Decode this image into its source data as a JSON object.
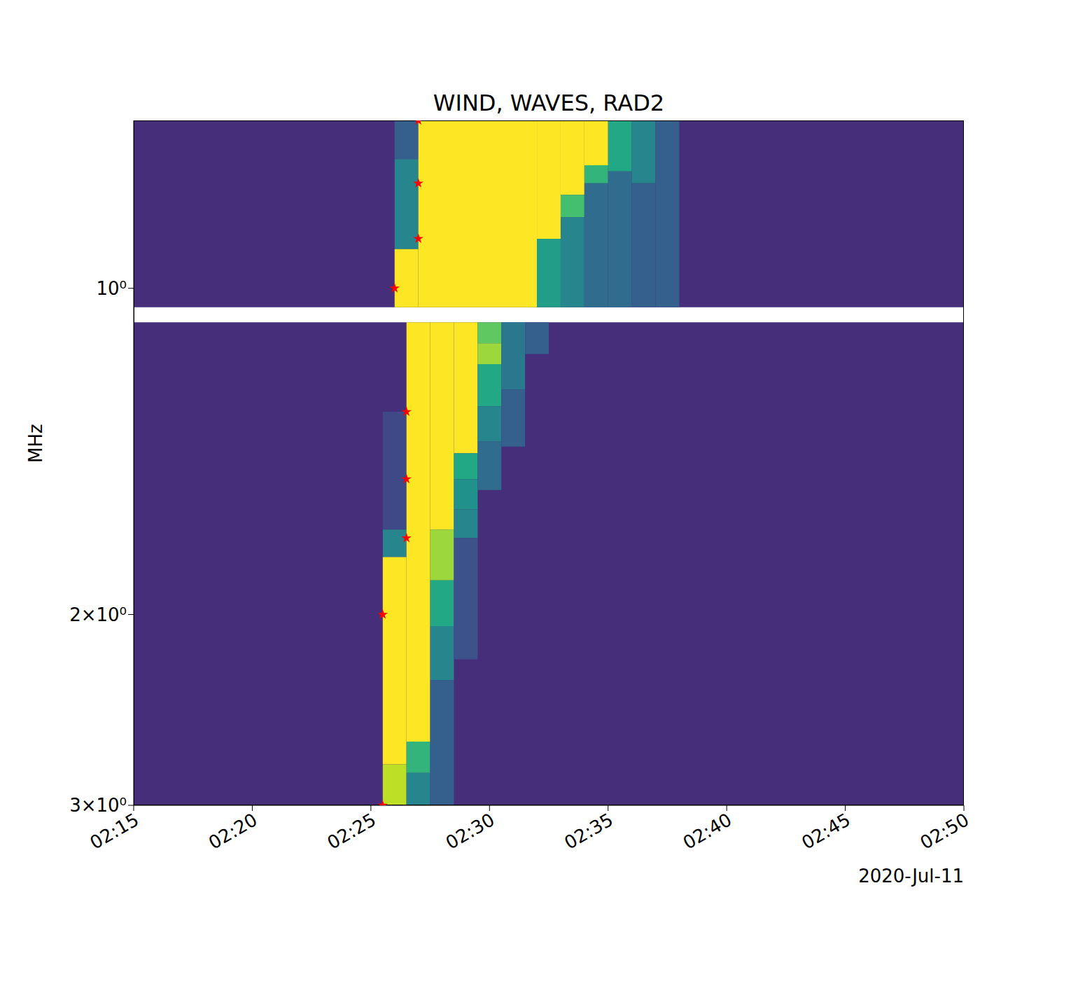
{
  "chart_data": {
    "type": "heatmap",
    "title": "WIND, WAVES, RAD2",
    "ylabel": "MHz",
    "xlabel": "2020-Jul-11",
    "log": "y",
    "grid": false,
    "xlim": [
      135,
      170
    ],
    "xticks": [
      {
        "value": 135,
        "label": "02:15"
      },
      {
        "value": 140,
        "label": "02:20"
      },
      {
        "value": 145,
        "label": "02:25"
      },
      {
        "value": 150,
        "label": "02:30"
      },
      {
        "value": 155,
        "label": "02:35"
      },
      {
        "value": 160,
        "label": "02:40"
      },
      {
        "value": 165,
        "label": "02:45"
      },
      {
        "value": 170,
        "label": "02:50"
      }
    ],
    "ylim": [
      0.7,
      3
    ],
    "yticks": [
      {
        "value": 1,
        "label": "10⁰"
      },
      {
        "value": 2,
        "label": "2×10⁰"
      },
      {
        "value": 3,
        "label": "3×10⁰"
      }
    ],
    "clim": [
      0,
      1
    ],
    "panels": [
      {
        "f": [
          0.7,
          1.041
        ],
        "background": 0.13
      },
      {
        "f": [
          1.075,
          3
        ],
        "background": 0.13
      }
    ],
    "cells": [
      {
        "t": [
          146,
          147
        ],
        "f": [
          0.7,
          0.76
        ],
        "value": 0.3
      },
      {
        "t": [
          146,
          147
        ],
        "f": [
          0.76,
          0.92
        ],
        "value": 0.45
      },
      {
        "t": [
          146,
          147
        ],
        "f": [
          0.92,
          1.041
        ],
        "value": 1
      },
      {
        "t": [
          147,
          152
        ],
        "f": [
          0.7,
          1.041
        ],
        "value": 1
      },
      {
        "t": [
          152,
          153
        ],
        "f": [
          0.7,
          0.9
        ],
        "value": 1
      },
      {
        "t": [
          152,
          153
        ],
        "f": [
          0.9,
          1.041
        ],
        "value": 0.55
      },
      {
        "t": [
          153,
          154
        ],
        "f": [
          0.7,
          0.82
        ],
        "value": 1
      },
      {
        "t": [
          153,
          154
        ],
        "f": [
          0.82,
          0.86
        ],
        "value": 0.7
      },
      {
        "t": [
          153,
          154
        ],
        "f": [
          0.86,
          1.041
        ],
        "value": 0.45
      },
      {
        "t": [
          154,
          155
        ],
        "f": [
          0.7,
          0.77
        ],
        "value": 1
      },
      {
        "t": [
          154,
          155
        ],
        "f": [
          0.77,
          0.8
        ],
        "value": 0.65
      },
      {
        "t": [
          154,
          155
        ],
        "f": [
          0.8,
          1.041
        ],
        "value": 0.35
      },
      {
        "t": [
          155,
          156
        ],
        "f": [
          0.7,
          0.78
        ],
        "value": 0.6
      },
      {
        "t": [
          155,
          156
        ],
        "f": [
          0.78,
          1.041
        ],
        "value": 0.35
      },
      {
        "t": [
          156,
          157
        ],
        "f": [
          0.7,
          0.8
        ],
        "value": 0.45
      },
      {
        "t": [
          156,
          157
        ],
        "f": [
          0.8,
          1.041
        ],
        "value": 0.3
      },
      {
        "t": [
          157,
          158
        ],
        "f": [
          0.7,
          1.041
        ],
        "value": 0.3
      },
      {
        "t": [
          145.5,
          146.5
        ],
        "f": [
          1.3,
          1.67
        ],
        "value": 0.22
      },
      {
        "t": [
          145.5,
          146.5
        ],
        "f": [
          1.67,
          1.77
        ],
        "value": 0.45
      },
      {
        "t": [
          145.5,
          146.5
        ],
        "f": [
          1.77,
          2.75
        ],
        "value": 1
      },
      {
        "t": [
          145.5,
          146.5
        ],
        "f": [
          2.75,
          3
        ],
        "value": 0.9
      },
      {
        "t": [
          146.5,
          147.5
        ],
        "f": [
          1.075,
          2.62
        ],
        "value": 1
      },
      {
        "t": [
          146.5,
          147.5
        ],
        "f": [
          2.62,
          2.8
        ],
        "value": 0.65
      },
      {
        "t": [
          146.5,
          147.5
        ],
        "f": [
          2.8,
          3
        ],
        "value": 0.45
      },
      {
        "t": [
          147.5,
          148.5
        ],
        "f": [
          1.075,
          1.67
        ],
        "value": 1
      },
      {
        "t": [
          147.5,
          148.5
        ],
        "f": [
          1.67,
          1.86
        ],
        "value": 0.85
      },
      {
        "t": [
          147.5,
          148.5
        ],
        "f": [
          1.86,
          2.05
        ],
        "value": 0.6
      },
      {
        "t": [
          147.5,
          148.5
        ],
        "f": [
          2.05,
          2.3
        ],
        "value": 0.45
      },
      {
        "t": [
          147.5,
          148.5
        ],
        "f": [
          2.3,
          3
        ],
        "value": 0.3
      },
      {
        "t": [
          148.5,
          149.5
        ],
        "f": [
          1.075,
          1.42
        ],
        "value": 1
      },
      {
        "t": [
          148.5,
          149.5
        ],
        "f": [
          1.42,
          1.5
        ],
        "value": 0.6
      },
      {
        "t": [
          148.5,
          149.5
        ],
        "f": [
          1.5,
          1.6
        ],
        "value": 0.5
      },
      {
        "t": [
          148.5,
          149.5
        ],
        "f": [
          1.6,
          1.7
        ],
        "value": 0.45
      },
      {
        "t": [
          148.5,
          149.5
        ],
        "f": [
          1.7,
          2.2
        ],
        "value": 0.25
      },
      {
        "t": [
          149.5,
          150.5
        ],
        "f": [
          1.075,
          1.124
        ],
        "value": 0.75
      },
      {
        "t": [
          149.5,
          150.5
        ],
        "f": [
          1.124,
          1.175
        ],
        "value": 0.85
      },
      {
        "t": [
          149.5,
          150.5
        ],
        "f": [
          1.175,
          1.285
        ],
        "value": 0.6
      },
      {
        "t": [
          149.5,
          150.5
        ],
        "f": [
          1.285,
          1.385
        ],
        "value": 0.45
      },
      {
        "t": [
          149.5,
          150.5
        ],
        "f": [
          1.385,
          1.535
        ],
        "value": 0.35
      },
      {
        "t": [
          150.5,
          151.5
        ],
        "f": [
          1.075,
          1.24
        ],
        "value": 0.4
      },
      {
        "t": [
          150.5,
          151.5
        ],
        "f": [
          1.24,
          1.4
        ],
        "value": 0.3
      },
      {
        "t": [
          151.5,
          152.5
        ],
        "f": [
          1.075,
          1.15
        ],
        "value": 0.3
      }
    ],
    "points": {
      "color": "#ff0000",
      "marker": "star",
      "x": [
        147,
        147,
        147,
        146,
        146.5,
        146.5,
        146.5,
        145.5,
        145.5
      ],
      "y": [
        0.7,
        0.8,
        0.9,
        1.0,
        1.3,
        1.5,
        1.7,
        2.0,
        3.0
      ]
    }
  }
}
